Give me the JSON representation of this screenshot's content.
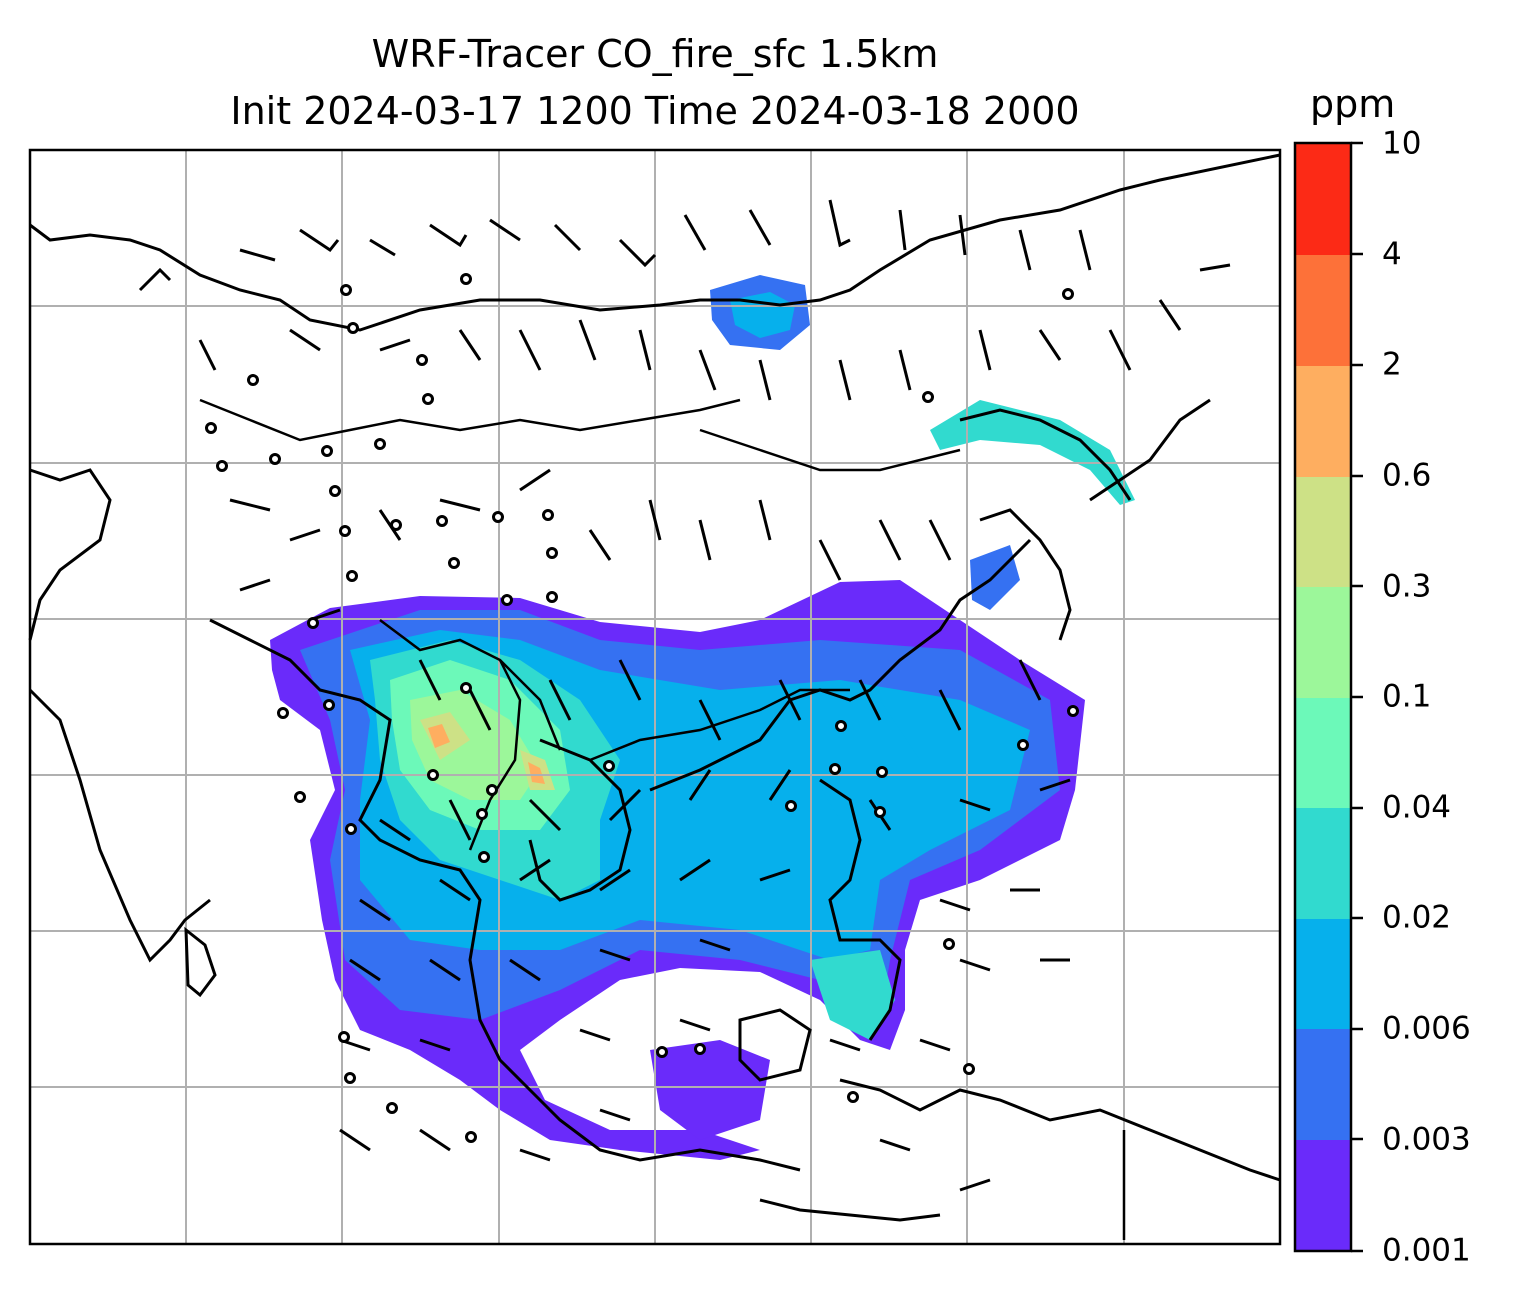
{
  "title": {
    "line1": "WRF-Tracer CO_fire_sfc 1.5km",
    "line2": "Init 2024-03-17 1200 Time 2024-03-18 2000"
  },
  "colorbar": {
    "unit": "ppm",
    "levels": [
      "0.001",
      "0.003",
      "0.006",
      "0.02",
      "0.04",
      "0.1",
      "0.3",
      "0.6",
      "2",
      "4",
      "10"
    ],
    "colors": [
      "#6a2bfa",
      "#3571f2",
      "#06b0ec",
      "#31dacf",
      "#6cf9b9",
      "#9cf79a",
      "#cde186",
      "#feae60",
      "#fd7139",
      "#fc2a16"
    ]
  },
  "map": {
    "projection_grid": "on",
    "fields": [
      "CO_fire_sfc concentration shading",
      "wind barbs",
      "coastlines",
      "country borders"
    ]
  }
}
